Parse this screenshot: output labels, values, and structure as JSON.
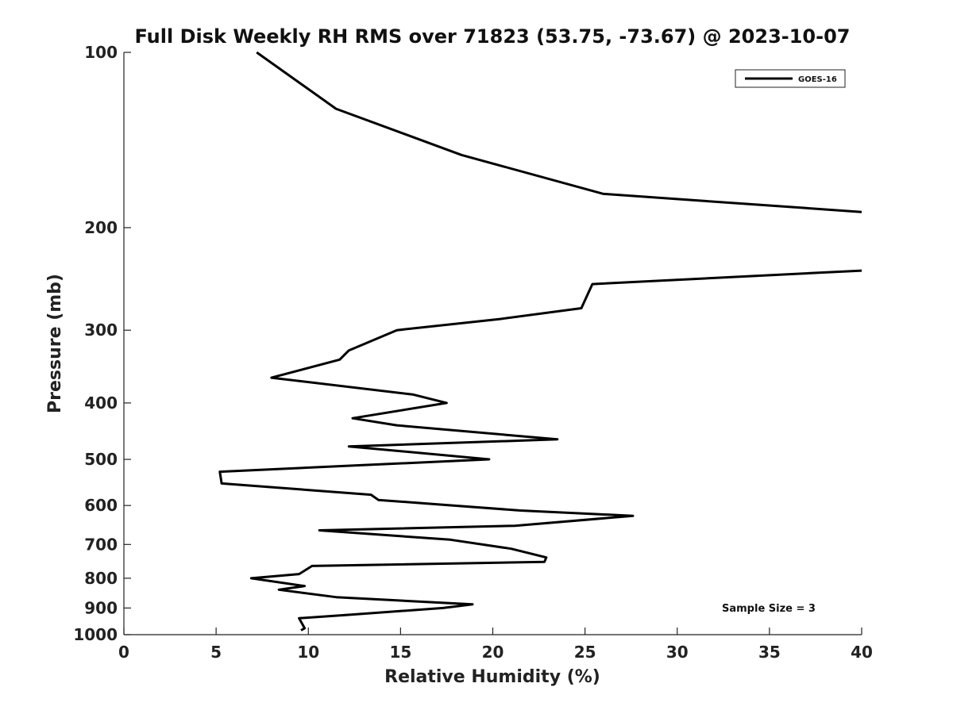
{
  "chart_data": {
    "type": "line",
    "title": "Full Disk Weekly RH RMS over 71823 (53.75, -73.67) @ 2023-10-07",
    "xlabel": "Relative Humidity (%)",
    "ylabel": "Pressure (mb)",
    "xlim": [
      0,
      40
    ],
    "ylim": [
      1000,
      100
    ],
    "y_scale": "log",
    "y_inverted": true,
    "grid": false,
    "x_ticks": [
      "0",
      "5",
      "10",
      "15",
      "20",
      "25",
      "30",
      "35",
      "40"
    ],
    "y_ticks": [
      "100",
      "200",
      "300",
      "400",
      "500",
      "600",
      "700",
      "800",
      "900",
      "1000"
    ],
    "legend": {
      "position": "top-right",
      "entries": [
        "GOES-16"
      ]
    },
    "annotation": "Sample Size = 3",
    "series": [
      {
        "name": "GOES-16",
        "color": "#000000",
        "points": [
          [
            7.2,
            100
          ],
          [
            11.5,
            125
          ],
          [
            18.3,
            150
          ],
          [
            26,
            175
          ],
          [
            40,
            188
          ],
          null,
          [
            40,
            237
          ],
          [
            25.4,
            250
          ],
          [
            24.8,
            275
          ],
          [
            20.4,
            287
          ],
          [
            14.8,
            300
          ],
          [
            12.2,
            325
          ],
          [
            11.7,
            337
          ],
          [
            8,
            362
          ],
          [
            15.7,
            387
          ],
          [
            17.5,
            400
          ],
          [
            12.4,
            425
          ],
          [
            14.8,
            437
          ],
          [
            23.5,
            462
          ],
          [
            12.2,
            475
          ],
          [
            19.8,
            500
          ],
          [
            5.2,
            525
          ],
          [
            5.3,
            550
          ],
          [
            13.4,
            575
          ],
          [
            13.8,
            587
          ],
          [
            21.5,
            612
          ],
          [
            27.6,
            625
          ],
          [
            21.2,
            650
          ],
          [
            10.6,
            662
          ],
          [
            17.7,
            687
          ],
          [
            21,
            712
          ],
          [
            22.9,
            737
          ],
          [
            22.8,
            750
          ],
          [
            10.2,
            762
          ],
          [
            9.5,
            787
          ],
          [
            6.9,
            800
          ],
          [
            9.8,
            825
          ],
          [
            8.4,
            837
          ],
          [
            11.5,
            862
          ],
          [
            18.9,
            887
          ],
          [
            17.3,
            900
          ],
          [
            12.1,
            925
          ],
          [
            9.5,
            937
          ],
          [
            9.8,
            975
          ],
          [
            9.6,
            983
          ]
        ]
      }
    ]
  }
}
